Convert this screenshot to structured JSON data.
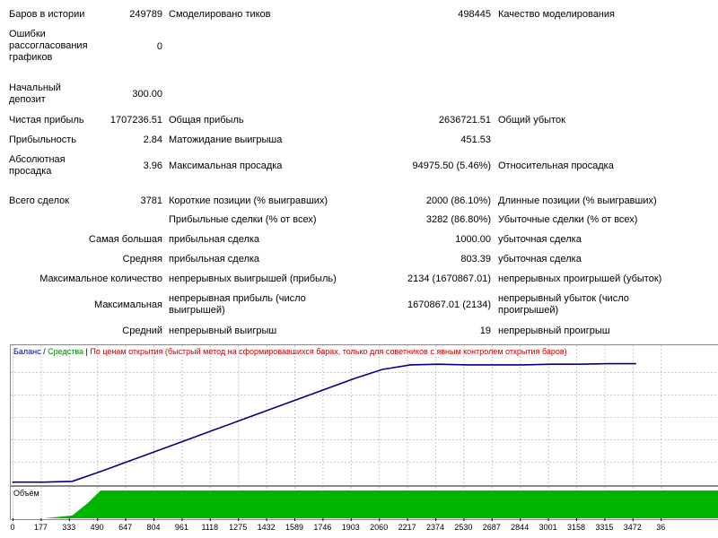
{
  "report": {
    "bars_label": "Баров в истории",
    "bars_value": "249789",
    "ticks_label": "Смоделировано тиков",
    "ticks_value": "498445",
    "quality_label": "Качество моделирования",
    "errors_label": "Ошибки рассогласования графиков",
    "errors_value": "0",
    "deposit_label": "Начальный депозит",
    "deposit_value": "300.00",
    "net_profit_label": "Чистая прибыль",
    "net_profit_value": "1707236.51",
    "gross_profit_label": "Общая прибыль",
    "gross_profit_value": "2636721.51",
    "gross_loss_label": "Общий убыток",
    "profit_factor_label": "Прибыльность",
    "profit_factor_value": "2.84",
    "expected_payoff_label": "Матожидание выигрыша",
    "expected_payoff_value": "451.53",
    "abs_drawdown_label": "Абсолютная просадка",
    "abs_drawdown_value": "3.96",
    "max_drawdown_label": "Максимальная просадка",
    "max_drawdown_value": "94975.50 (5.46%)",
    "rel_drawdown_label": "Относительная просадка",
    "total_trades_label": "Всего сделок",
    "total_trades_value": "3781",
    "short_label": "Короткие позиции (% выигравших)",
    "short_value": "2000 (86.10%)",
    "long_label": "Длинные позиции (% выигравших)",
    "profit_trades_label": "Прибыльные сделки (% от всех)",
    "profit_trades_value": "3282 (86.80%)",
    "loss_trades_label": "Убыточные сделки (% от всех)",
    "largest_label": "Самая большая",
    "largest_profit_label": "прибыльная сделка",
    "largest_profit_value": "1000.00",
    "largest_loss_label": "убыточная сделка",
    "average_label": "Средняя",
    "average_profit_label": "прибыльная сделка",
    "average_profit_value": "803.39",
    "average_loss_label": "убыточная сделка",
    "max_count_label": "Максимальное количество",
    "max_cons_wins_label": "непрерывных выигрышей (прибыль)",
    "max_cons_wins_value": "2134 (1670867.01)",
    "max_cons_losses_label": "непрерывных проигрышей (убыток)",
    "maximal_label": "Максимальная",
    "max_cons_profit_label": "непрерывная прибыль (число выигрышей)",
    "max_cons_profit_value": "1670867.01 (2134)",
    "max_cons_loss_label": "непрерывный убыток (число проигрышей)",
    "avg_label": "Средний",
    "avg_cons_wins_label": "непрерывный выигрыш",
    "avg_cons_wins_value": "19",
    "avg_cons_losses_label": "непрерывный проигрыш"
  },
  "legend": {
    "balance": "Баланс",
    "sep1": " / ",
    "equity": "Средства",
    "sep2": " | ",
    "mode": "По ценам открытия (быстрый метод на сформировавшихся барах, только для советников с явным контролем открытия баров)"
  },
  "volume_label": "Объём",
  "colors": {
    "balance": "#000080",
    "equity": "#008000",
    "mode": "#c00000",
    "volume": "#00b400"
  },
  "chart_data": {
    "type": "line",
    "series": [
      {
        "name": "Баланс",
        "x": [
          0,
          177,
          333,
          490,
          647,
          804,
          961,
          1118,
          1275,
          1432,
          1589,
          1746,
          1903,
          2060,
          2217,
          2374,
          2530,
          2687,
          2844,
          3001,
          3158,
          3315,
          3472
        ],
        "values": [
          0.018,
          0.018,
          0.025,
          0.11,
          0.2,
          0.29,
          0.38,
          0.47,
          0.56,
          0.65,
          0.74,
          0.83,
          0.92,
          1.0,
          1.04,
          1.045,
          1.04,
          1.04,
          1.04,
          1.045,
          1.045,
          1.05,
          1.05
        ]
      }
    ],
    "volume": {
      "x": [
        0,
        177,
        333,
        420,
        490,
        647,
        3472
      ],
      "values": [
        0,
        0,
        0.1,
        0.55,
        1.0,
        1.0,
        1.0
      ]
    },
    "xticks": [
      "0",
      "177",
      "333",
      "490",
      "647",
      "804",
      "961",
      "1118",
      "1275",
      "1432",
      "1589",
      "1746",
      "1903",
      "2060",
      "2217",
      "2374",
      "2530",
      "2687",
      "2844",
      "3001",
      "3158",
      "3315",
      "3472",
      "36"
    ]
  }
}
